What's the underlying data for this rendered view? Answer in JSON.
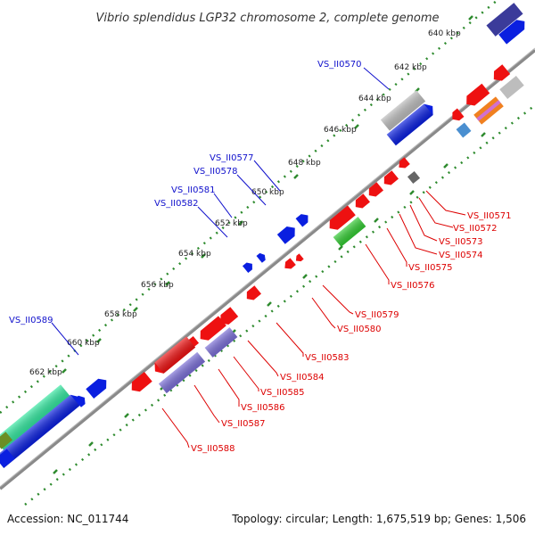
{
  "title": "Vibrio splendidus LGP32 chromosome 2, complete genome",
  "footer": {
    "accession": "Accession: NC_011744",
    "summary": "Topology: circular; Length: 1,675,519 bp; Genes: 1,506"
  },
  "colors": {
    "backbone": "#8c8c8c",
    "dots": "#2e8b2e",
    "plus_label": "#1010cc",
    "minus_label": "#dd0000",
    "gene_blue": "#0a1fe0",
    "gene_red": "#ee1111",
    "gene_slate": "#7b6fd8",
    "gene_green": "#33cc33",
    "gene_mint": "#33e8a0",
    "gene_gray": "#bdbdbd",
    "gene_dark": "#666666"
  },
  "ticks": [
    "640 kbp",
    "642 kbp",
    "644 kbp",
    "646 kbp",
    "648 kbp",
    "650 kbp",
    "652 kbp",
    "654 kbp",
    "656 kbp",
    "658 kbp",
    "660 kbp",
    "662 kbp"
  ],
  "plus_labels": [
    "VS_II0570",
    "VS_II0577",
    "VS_II0578",
    "VS_II0581",
    "VS_II0582",
    "VS_II0589"
  ],
  "minus_labels": [
    "VS_II0571",
    "VS_II0572",
    "VS_II0573",
    "VS_II0574",
    "VS_II0575",
    "VS_II0576",
    "VS_II0579",
    "VS_II0580",
    "VS_II0583",
    "VS_II0584",
    "VS_II0585",
    "VS_II0586",
    "VS_II0587",
    "VS_II0588"
  ]
}
